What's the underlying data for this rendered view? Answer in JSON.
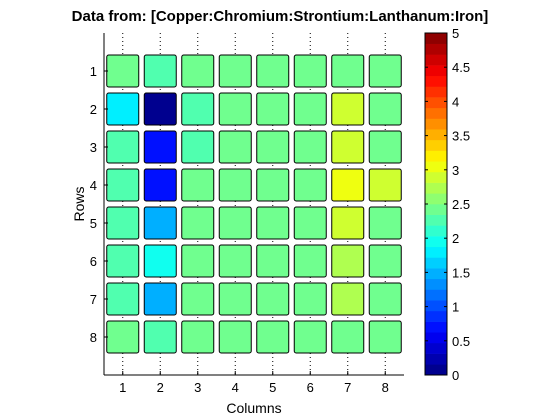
{
  "chart_data": {
    "type": "heatmap",
    "title": "Data from: [Copper:Chromium:Strontium:Lanthanum:Iron]",
    "xlabel": "Columns",
    "ylabel": "Rows",
    "x_ticks": [
      "1",
      "2",
      "3",
      "4",
      "5",
      "6",
      "7",
      "8"
    ],
    "y_ticks": [
      "1",
      "2",
      "3",
      "4",
      "5",
      "6",
      "7",
      "8"
    ],
    "colorbar": {
      "range": [
        0,
        5
      ],
      "ticks": [
        "0",
        "0.5",
        "1",
        "1.5",
        "2",
        "2.5",
        "3",
        "3.5",
        "4",
        "4.5",
        "5"
      ],
      "levels": 32,
      "colormap": "jet"
    },
    "values": [
      [
        2.35,
        2.3,
        2.35,
        2.35,
        2.35,
        2.35,
        2.35,
        2.35
      ],
      [
        1.75,
        0.05,
        2.25,
        2.35,
        2.35,
        2.35,
        2.85,
        2.35
      ],
      [
        2.25,
        0.65,
        2.25,
        2.35,
        2.35,
        2.35,
        2.9,
        2.35
      ],
      [
        2.3,
        0.65,
        2.35,
        2.35,
        2.35,
        2.35,
        3.1,
        2.85
      ],
      [
        2.3,
        1.5,
        2.35,
        2.35,
        2.35,
        2.35,
        2.9,
        2.35
      ],
      [
        2.3,
        1.9,
        2.35,
        2.35,
        2.35,
        2.35,
        2.8,
        2.35
      ],
      [
        2.25,
        1.45,
        2.35,
        2.35,
        2.35,
        2.35,
        2.8,
        2.35
      ],
      [
        2.35,
        2.3,
        2.35,
        2.35,
        2.35,
        2.35,
        2.35,
        2.35
      ]
    ],
    "grid": true
  }
}
